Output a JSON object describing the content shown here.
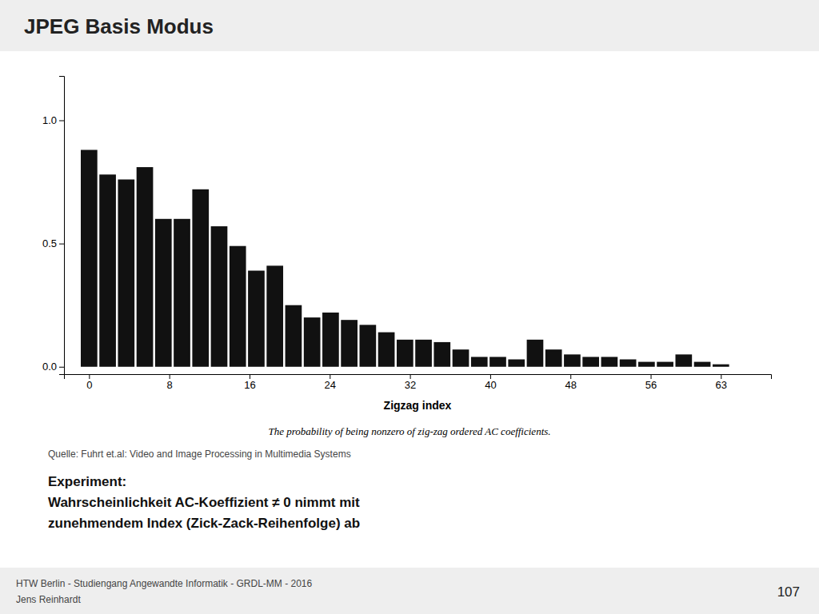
{
  "chart_data": {
    "type": "bar",
    "title": "JPEG Basis Modus",
    "xlabel": "Zigzag index",
    "x": [
      0,
      1.8529411764705883,
      3.7058823529411766,
      5.558823529411765,
      7.411764705882353,
      9.264705882352942,
      11.117647058823529,
      12.970588235294118,
      14.823529411764707,
      16.676470588235293,
      18.529411764705884,
      20.38235294117647,
      22.235294117647058,
      24.08823529411765,
      25.941176470588236,
      27.794117647058822,
      29.647058823529413,
      31.5,
      33.35294117647059,
      35.20588235294118,
      37.05882352941177,
      38.911764705882355,
      40.76470588235294,
      42.61764705882353,
      44.470588235294116,
      46.32352941176471,
      48.1764705882353,
      50.029411764705884,
      51.88235294117647,
      53.73529411764706,
      55.588235294117645,
      57.44117647058823,
      59.294117647058826,
      61.14705882352941,
      63
    ],
    "values": [
      0.88,
      0.78,
      0.76,
      0.81,
      0.6,
      0.6,
      0.72,
      0.57,
      0.49,
      0.39,
      0.41,
      0.25,
      0.2,
      0.22,
      0.19,
      0.17,
      0.14,
      0.11,
      0.11,
      0.1,
      0.07,
      0.04,
      0.04,
      0.03,
      0.11,
      0.07,
      0.05,
      0.04,
      0.04,
      0.03,
      0.02,
      0.02,
      0.05,
      0.02,
      0.01
    ],
    "color": "#111111",
    "xlim": [
      -2.5,
      68
    ],
    "ylim": [
      -0.03,
      1.18
    ],
    "xticks": [
      0,
      8,
      16,
      24,
      32,
      40,
      48,
      56,
      63
    ],
    "yticks": [
      {
        "value": 0.0,
        "label": "0.0"
      },
      0.5,
      {
        "value": 1.0,
        "label": "1.0"
      }
    ],
    "annotations": [
      "The probability of being nonzero of zig-zag ordered AC coefficients.",
      "Quelle: Fuhrt et.al: Video and Image Processing in Multimedia Systems",
      "Experiment:",
      "Wahrscheinlichkeit AC-Koeffizient ≠ 0 nimmt mit",
      "zunehmendem Index (Zick-Zack-Reihenfolge) ab",
      "HTW Berlin - Studiengang Angewandte Informatik - GRDL-MM - 2016",
      "Jens Reinhardt",
      "107"
    ]
  }
}
